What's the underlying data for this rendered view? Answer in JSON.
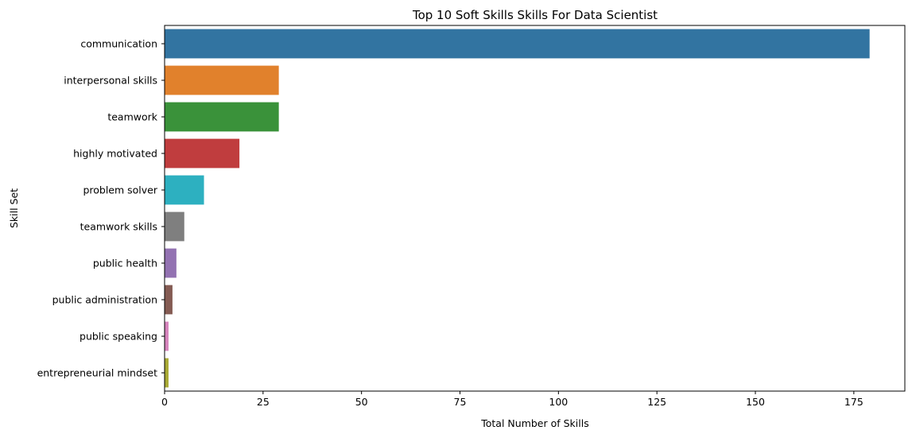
{
  "chart_data": {
    "type": "bar",
    "orientation": "horizontal",
    "title": "Top 10 Soft Skills Skills For Data Scientist",
    "xlabel": "Total Number of Skills",
    "ylabel": "Skill Set",
    "categories": [
      "communication",
      "interpersonal skills",
      "teamwork",
      "highly motivated",
      "problem solver",
      "teamwork skills",
      "public health",
      "public administration",
      "public speaking",
      "entrepreneurial mindset"
    ],
    "values": [
      179,
      29,
      29,
      19,
      10,
      5,
      3,
      2,
      1,
      1
    ],
    "colors": [
      "#3274a1",
      "#e1812c",
      "#3a923a",
      "#c03d3e",
      "#2db0c0",
      "#7f7f7f",
      "#9372b2",
      "#845b53",
      "#d684bd",
      "#a9aa35"
    ],
    "xlim": [
      0,
      187.95
    ],
    "xticks": [
      0,
      25,
      50,
      75,
      100,
      125,
      150,
      175
    ],
    "grid": false,
    "legend": "none"
  }
}
